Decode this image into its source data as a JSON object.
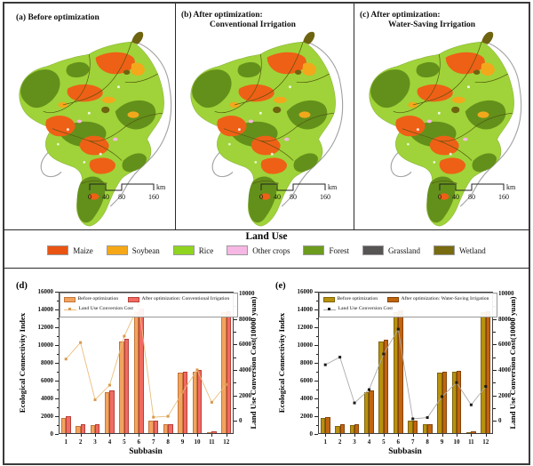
{
  "figure": {
    "panels": {
      "a": {
        "label": "(a)",
        "line1": "Before optimization",
        "line2": ""
      },
      "b": {
        "label": "(b)",
        "line1": "After optimization:",
        "line2": "Conventional Irrigation"
      },
      "c": {
        "label": "(c)",
        "line1": "After optimization:",
        "line2": "Water-Saving Irrigation"
      }
    },
    "scalebar": {
      "labels": [
        "0",
        "40",
        "80",
        "160"
      ],
      "unit": "km"
    },
    "landuse_legend": {
      "title": "Land Use",
      "items": [
        {
          "label": "Maize",
          "color": "#E95413"
        },
        {
          "label": "Soybean",
          "color": "#F6A717"
        },
        {
          "label": "Rice",
          "color": "#8FD41F"
        },
        {
          "label": "Other crops",
          "color": "#F6B7E4"
        },
        {
          "label": "Forest",
          "color": "#6C9B1E"
        },
        {
          "label": "Grassland",
          "color": "#575454"
        },
        {
          "label": "Wetland",
          "color": "#786B10"
        }
      ]
    }
  },
  "chart_data": [
    {
      "panel_label": "(d)",
      "type": "bar",
      "categories": [
        "1",
        "2",
        "3",
        "4",
        "5",
        "6",
        "7",
        "8",
        "9",
        "10",
        "11",
        "12"
      ],
      "series": [
        {
          "name": "Before optimization",
          "kind": "bar",
          "axis": "left",
          "color": "#F2A45F",
          "edge": "#C4763B",
          "values": [
            1800,
            900,
            1050,
            4700,
            10450,
            13700,
            1500,
            1150,
            6950,
            7000,
            250,
            13700
          ]
        },
        {
          "name": "After optimization: Conventional Irrigation",
          "kind": "bar",
          "axis": "left",
          "color": "#F06B62",
          "edge": "#B84038",
          "values": [
            2000,
            1150,
            1100,
            4900,
            10750,
            14100,
            1550,
            1150,
            7050,
            7250,
            350,
            13800
          ]
        },
        {
          "name": "Land Use Conversion Cost",
          "kind": "line",
          "axis": "right",
          "color": "#E9BE7B",
          "marker_color": "#D99A4E",
          "values": [
            4850,
            6150,
            1650,
            2800,
            6650,
            9100,
            280,
            350,
            2250,
            4000,
            1450,
            2850
          ]
        }
      ],
      "xlabel": "Subbasin",
      "ylabel_left": "Ecological Connectivity Index",
      "ylabel_right": "Land Use Conversion Cost(10000 yuan)",
      "left_axis": {
        "min": 0,
        "max": 16000,
        "step": 2000
      },
      "right_axis": {
        "min": 0,
        "max": 10000,
        "step": 2000,
        "zero_frac": 0.907,
        "top_frac": 0.013
      },
      "legend_position": "top-left-inside",
      "grid": false
    },
    {
      "panel_label": "(e)",
      "type": "bar",
      "categories": [
        "1",
        "2",
        "3",
        "4",
        "5",
        "6",
        "7",
        "8",
        "9",
        "10",
        "11",
        "12"
      ],
      "series": [
        {
          "name": "Before optimization",
          "kind": "bar",
          "axis": "left",
          "color": "#B8910E",
          "edge": "#81650A",
          "values": [
            1800,
            900,
            1050,
            4750,
            10450,
            13700,
            1500,
            1150,
            6900,
            7000,
            250,
            13700
          ]
        },
        {
          "name": "After optimization: Water-Saving Irrigation",
          "kind": "bar",
          "axis": "left",
          "color": "#C2650F",
          "edge": "#86430A",
          "values": [
            1950,
            1100,
            1100,
            4900,
            10650,
            13950,
            1550,
            1150,
            7000,
            7150,
            300,
            13800
          ]
        },
        {
          "name": "Land Use Conversion Cost",
          "kind": "line",
          "axis": "right",
          "color": "#ABABAB",
          "marker_color": "#1a1a1a",
          "values": [
            4400,
            5000,
            1400,
            2450,
            5250,
            7200,
            150,
            250,
            1900,
            3000,
            1250,
            2700
          ]
        }
      ],
      "xlabel": "Subbasin",
      "ylabel_left": "Ecological Connectivity Index",
      "ylabel_right": "Land Use Conversion Cost(10000 yuan)",
      "left_axis": {
        "min": 0,
        "max": 16000,
        "step": 2000
      },
      "right_axis": {
        "min": 0,
        "max": 10000,
        "step": 2000,
        "zero_frac": 0.907,
        "top_frac": 0.013
      },
      "legend_position": "top-left-inside",
      "grid": false
    }
  ]
}
